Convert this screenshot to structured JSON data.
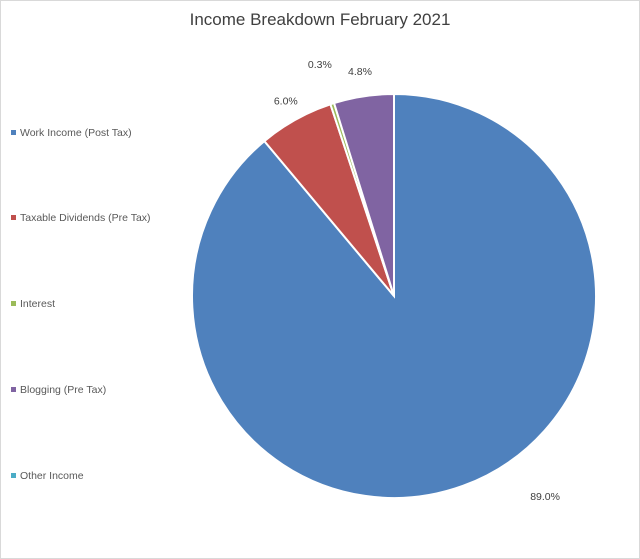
{
  "chart_data": {
    "type": "pie",
    "title": "Income Breakdown February 2021",
    "categories": [
      "Work Income (Post Tax)",
      "Taxable Dividends (Pre Tax)",
      "Interest",
      "Blogging (Pre Tax)",
      "Other Income"
    ],
    "values": [
      89.0,
      6.0,
      0.3,
      4.8,
      0.0
    ],
    "data_labels": [
      "89.0%",
      "6.0%",
      "0.3%",
      "4.8%",
      ""
    ],
    "colors": [
      "#4f81bd",
      "#c0504d",
      "#9bbb59",
      "#8064a2",
      "#4bacc6"
    ],
    "legend_position": "left",
    "start_angle": "12 o'clock, clockwise"
  }
}
